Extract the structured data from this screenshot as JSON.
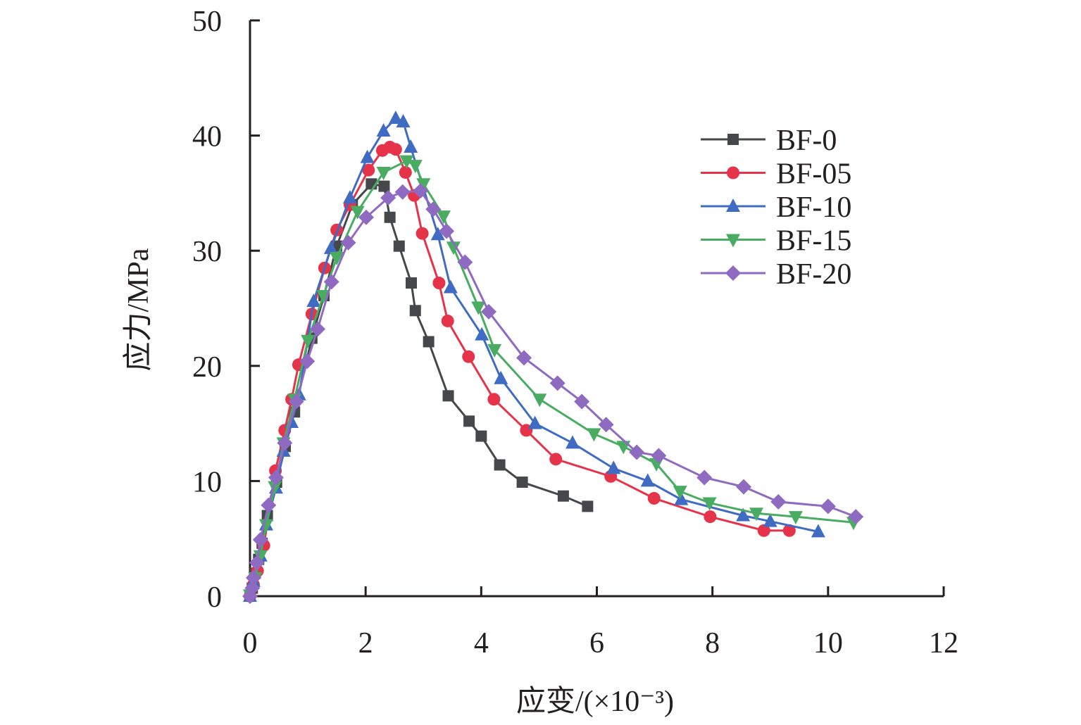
{
  "chart_data": {
    "type": "line",
    "title": "",
    "xlabel": "应变/(×10⁻³)",
    "ylabel": "应力/MPa",
    "xlim": [
      0,
      12
    ],
    "ylim": [
      0,
      50
    ],
    "xticks": [
      "0",
      "2",
      "4",
      "6",
      "8",
      "10",
      "12"
    ],
    "yticks": [
      "0",
      "10",
      "20",
      "30",
      "40",
      "50"
    ],
    "grid": false,
    "legend_position": "top-right",
    "series": [
      {
        "name": "BF-0",
        "color": "#45474b",
        "marker": "square",
        "x": [
          0,
          0.04,
          0.09,
          0.15,
          0.21,
          0.3,
          0.46,
          0.61,
          0.77,
          1.07,
          1.28,
          1.5,
          1.77,
          2.1,
          2.32,
          2.42,
          2.58,
          2.79,
          2.86,
          3.09,
          3.43,
          3.79,
          4.0,
          4.32,
          4.71,
          5.42,
          5.84
        ],
        "y": [
          0,
          0.7,
          2.0,
          3.2,
          4.6,
          7.0,
          9.9,
          13.0,
          16.0,
          22.4,
          26.1,
          30.4,
          34.0,
          35.8,
          35.6,
          32.9,
          30.4,
          27.2,
          24.8,
          22.1,
          17.4,
          15.2,
          13.9,
          11.4,
          9.9,
          8.7,
          7.8
        ]
      },
      {
        "name": "BF-05",
        "color": "#e5334a",
        "marker": "circle",
        "x": [
          0,
          0.06,
          0.13,
          0.24,
          0.44,
          0.6,
          0.72,
          0.84,
          1.07,
          1.29,
          1.5,
          1.73,
          2.05,
          2.29,
          2.42,
          2.52,
          2.69,
          2.84,
          2.98,
          3.27,
          3.42,
          3.78,
          4.22,
          4.78,
          5.29,
          6.24,
          6.99,
          7.96,
          8.89,
          9.33
        ],
        "y": [
          0,
          1.0,
          2.2,
          4.4,
          10.9,
          14.4,
          17.1,
          20.1,
          24.5,
          28.5,
          31.8,
          34.0,
          37.0,
          38.7,
          39.0,
          38.8,
          36.8,
          34.8,
          31.5,
          27.2,
          23.9,
          20.8,
          17.1,
          14.4,
          11.9,
          10.4,
          8.5,
          6.9,
          5.7,
          5.7
        ]
      },
      {
        "name": "BF-10",
        "color": "#3f6bc3",
        "marker": "triangle-up",
        "x": [
          0,
          0.06,
          0.18,
          0.28,
          0.45,
          0.58,
          0.72,
          0.85,
          1.1,
          1.4,
          1.73,
          2.03,
          2.31,
          2.52,
          2.65,
          2.78,
          3.25,
          3.47,
          4.01,
          4.34,
          4.93,
          5.58,
          6.29,
          6.88,
          7.46,
          8.53,
          9.0,
          9.83
        ],
        "y": [
          0,
          1.3,
          3.5,
          6.2,
          9.4,
          12.6,
          15.1,
          17.5,
          25.6,
          30.2,
          34.6,
          38.1,
          40.4,
          41.5,
          41.2,
          39.0,
          31.4,
          26.8,
          22.7,
          18.9,
          15.0,
          13.3,
          11.1,
          10.0,
          8.4,
          7.0,
          6.5,
          5.6
        ]
      },
      {
        "name": "BF-15",
        "color": "#4aab62",
        "marker": "triangle-down",
        "x": [
          0,
          0.09,
          0.18,
          0.28,
          0.43,
          0.58,
          0.77,
          1.0,
          1.27,
          1.5,
          1.86,
          2.31,
          2.71,
          2.86,
          3.0,
          3.35,
          3.52,
          3.95,
          4.23,
          5.01,
          5.95,
          6.46,
          7.03,
          7.44,
          7.95,
          8.76,
          9.44,
          10.44
        ],
        "y": [
          0.1,
          1.6,
          3.5,
          6.2,
          9.5,
          13.3,
          17.1,
          22.2,
          26.1,
          29.4,
          33.4,
          36.8,
          37.8,
          37.4,
          35.8,
          33.0,
          30.3,
          25.1,
          21.4,
          17.1,
          14.1,
          13.0,
          11.5,
          9.1,
          8.1,
          7.2,
          6.9,
          6.4
        ]
      },
      {
        "name": "BF-20",
        "color": "#8e6ac0",
        "marker": "diamond",
        "x": [
          0,
          0.04,
          0.06,
          0.12,
          0.18,
          0.32,
          0.45,
          0.6,
          0.8,
          0.99,
          1.17,
          1.41,
          1.7,
          2.01,
          2.39,
          2.64,
          2.95,
          3.17,
          3.4,
          3.72,
          4.13,
          4.74,
          5.32,
          5.74,
          6.16,
          6.69,
          7.07,
          7.86,
          8.54,
          9.14,
          10.0,
          10.48
        ],
        "y": [
          0,
          0.7,
          1.6,
          2.9,
          4.9,
          7.9,
          10.3,
          13.3,
          16.9,
          20.4,
          23.2,
          27.3,
          30.7,
          32.9,
          34.6,
          35.1,
          35.2,
          33.6,
          31.7,
          29.0,
          24.7,
          20.7,
          18.5,
          16.9,
          14.9,
          12.5,
          12.2,
          10.3,
          9.5,
          8.2,
          7.8,
          6.9
        ]
      }
    ]
  }
}
